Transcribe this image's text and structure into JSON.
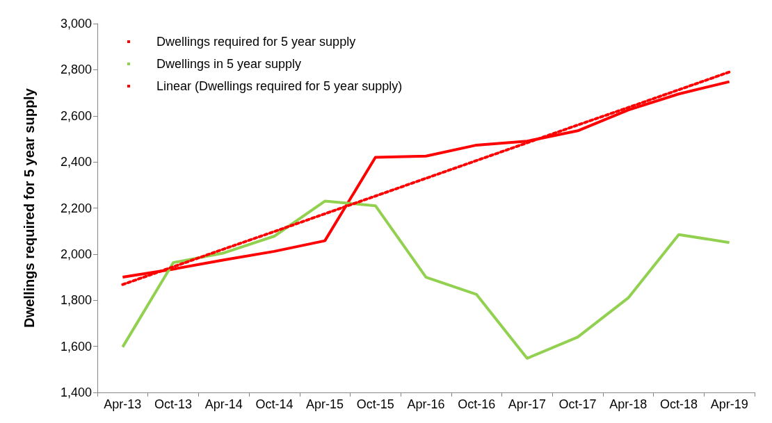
{
  "chart_data": {
    "type": "line",
    "ylabel": "Dwellings required for 5 year supply",
    "categories": [
      "Apr-13",
      "Oct-13",
      "Apr-14",
      "Oct-14",
      "Apr-15",
      "Oct-15",
      "Apr-16",
      "Oct-16",
      "Apr-17",
      "Oct-17",
      "Apr-18",
      "Oct-18",
      "Apr-19"
    ],
    "series": [
      {
        "name": "Dwellings required for 5 year supply",
        "color": "#ff0000",
        "values": [
          1900,
          1935,
          1975,
          2012,
          2058,
          2420,
          2425,
          2473,
          2490,
          2535,
          2625,
          2695,
          2748
        ]
      },
      {
        "name": "Dwellings in 5 year supply",
        "color": "#92d050",
        "values": [
          1597,
          1963,
          2005,
          2078,
          2230,
          2210,
          1900,
          1825,
          1548,
          1640,
          1810,
          2085,
          2050
        ]
      },
      {
        "name": "Linear (Dwellings required for 5 year supply)",
        "color": "#ff0000",
        "line_style": "dotted",
        "values": [
          1868,
          1945,
          2022,
          2098,
          2175,
          2252,
          2329,
          2406,
          2483,
          2560,
          2636,
          2713,
          2790
        ]
      }
    ],
    "ylim": [
      1400,
      3000
    ],
    "yticks": [
      {
        "value": 1400,
        "label": "1,400"
      },
      {
        "value": 1600,
        "label": "1,600"
      },
      {
        "value": 1800,
        "label": "1,800"
      },
      {
        "value": 2000,
        "label": "2,000"
      },
      {
        "value": 2200,
        "label": "2,200"
      },
      {
        "value": 2400,
        "label": "2,400"
      },
      {
        "value": 2600,
        "label": "2,600"
      },
      {
        "value": 2800,
        "label": "2,800"
      },
      {
        "value": 3000,
        "label": "3,000"
      }
    ],
    "grid": false,
    "legend": "top left",
    "marker": "none",
    "line_style": "solid"
  }
}
